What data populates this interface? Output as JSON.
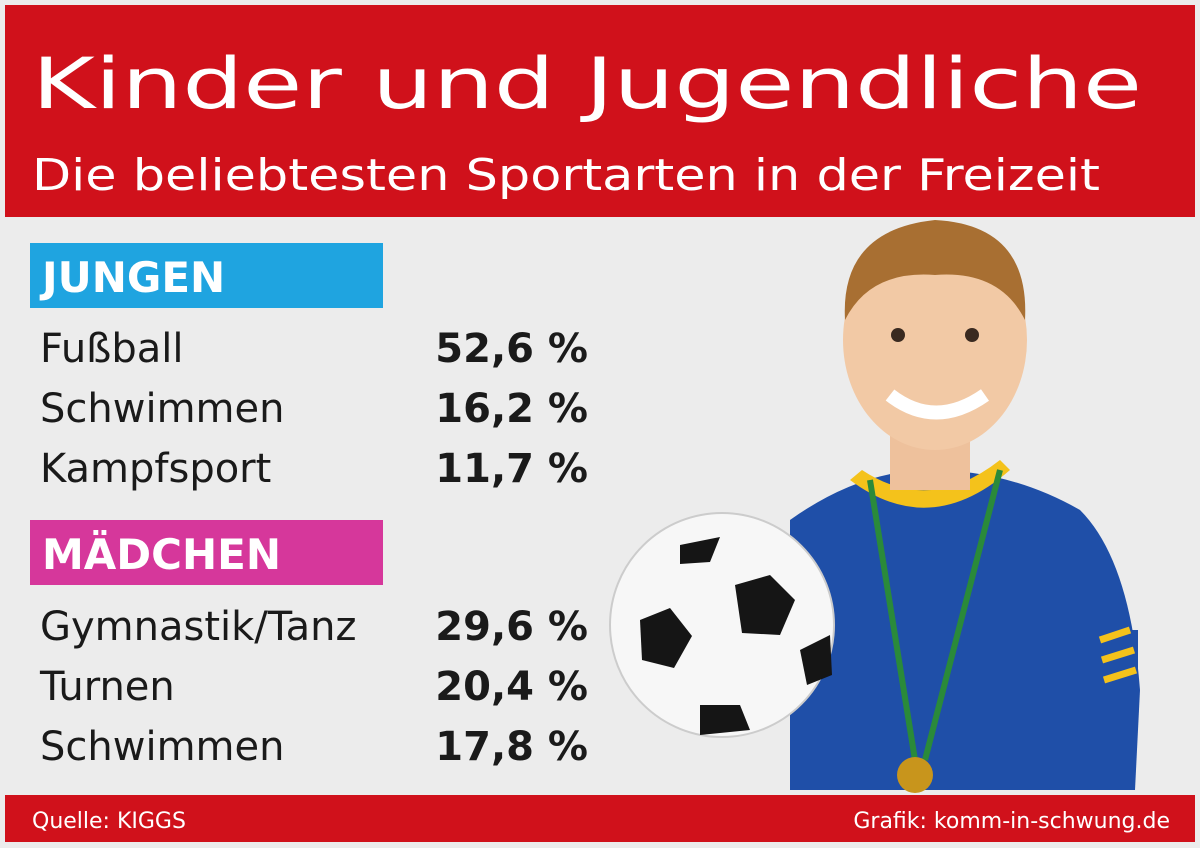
{
  "header": {
    "title": "Kinder und Jugendliche",
    "subtitle": "Die beliebtesten Sportarten in der Freizeit"
  },
  "sections": [
    {
      "heading": "JUNGEN",
      "rows": [
        {
          "sport": "Fußball",
          "value": "52,6 %"
        },
        {
          "sport": "Schwimmen",
          "value": "16,2 %"
        },
        {
          "sport": "Kampfsport",
          "value": "11,7 %"
        }
      ]
    },
    {
      "heading": "MÄDCHEN",
      "rows": [
        {
          "sport": "Gymnastik/Tanz",
          "value": "29,6 %"
        },
        {
          "sport": "Turnen",
          "value": "20,4 %"
        },
        {
          "sport": "Schwimmen",
          "value": "17,8 %"
        }
      ]
    }
  ],
  "footer": {
    "source": "Quelle: KIGGS",
    "credit": "Grafik: komm-in-schwung.de"
  }
}
